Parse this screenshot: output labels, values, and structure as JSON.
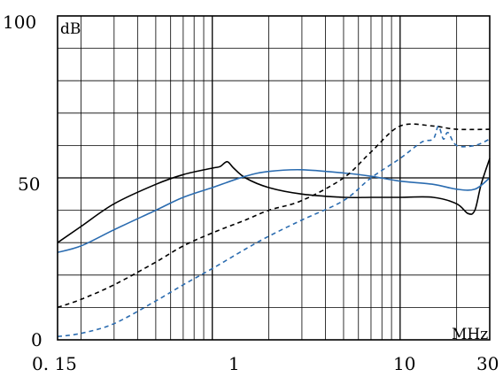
{
  "chart_data": {
    "type": "line",
    "x_scale": "log",
    "xlim": [
      0.15,
      30
    ],
    "ylim": [
      0,
      100
    ],
    "grid": true,
    "ylabel": "dB",
    "xlabel": "MHz",
    "ytick_labels": [
      "100",
      "50",
      "0"
    ],
    "xtick_labels": [
      "0. 15",
      "1",
      "10",
      "30"
    ],
    "series": [
      {
        "style": "solid",
        "color": "#000000",
        "x": [
          0.15,
          0.2,
          0.3,
          0.5,
          0.7,
          1.0,
          1.1,
          1.2,
          1.3,
          1.5,
          2,
          3,
          5,
          7,
          10,
          15,
          20,
          23,
          25,
          27,
          30
        ],
        "y": [
          30,
          35,
          42,
          48,
          51,
          53,
          53.5,
          55,
          53,
          50,
          47,
          45,
          44,
          44,
          44,
          44,
          42,
          39,
          40,
          48,
          56
        ]
      },
      {
        "style": "solid",
        "color": "#2b6cb0",
        "x": [
          0.15,
          0.2,
          0.3,
          0.5,
          0.7,
          1.0,
          1.5,
          2,
          3,
          5,
          7,
          10,
          15,
          20,
          25,
          30
        ],
        "y": [
          27,
          29,
          34,
          40,
          44,
          47,
          50.5,
          52,
          52.5,
          51.5,
          50.5,
          49,
          48,
          46.5,
          46.5,
          50
        ]
      },
      {
        "style": "dashed",
        "color": "#000000",
        "x": [
          0.15,
          0.2,
          0.3,
          0.5,
          0.7,
          1.0,
          1.5,
          2,
          3,
          5,
          7,
          10,
          15,
          20,
          30
        ],
        "y": [
          10,
          12.5,
          17,
          24,
          29,
          33,
          37,
          40,
          43,
          50,
          58,
          66,
          66,
          65,
          65
        ]
      },
      {
        "style": "dashed",
        "color": "#2b6cb0",
        "x": [
          0.15,
          0.2,
          0.3,
          0.5,
          0.7,
          1.0,
          1.5,
          2,
          3,
          5,
          7,
          10,
          13,
          15,
          16,
          17,
          18,
          20,
          25,
          30
        ],
        "y": [
          1,
          2,
          5,
          12,
          17,
          22,
          28,
          32,
          37,
          43,
          50,
          56,
          61,
          62,
          66,
          62,
          64,
          60,
          60,
          62
        ]
      }
    ]
  }
}
